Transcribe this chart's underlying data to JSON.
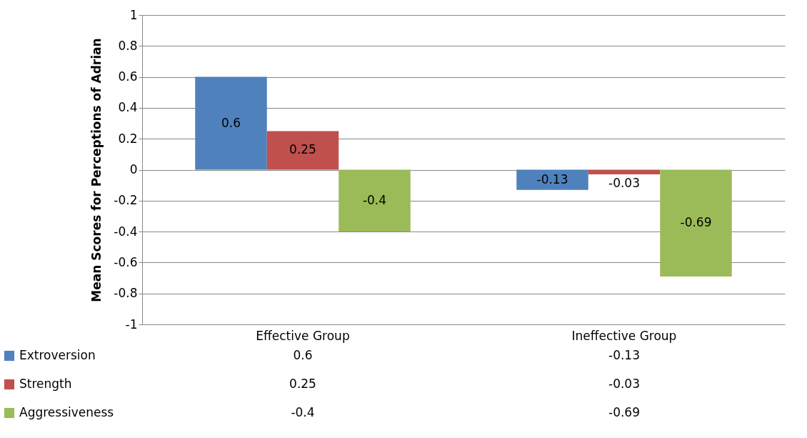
{
  "chart_data": {
    "type": "bar",
    "ylabel": "Mean Scores for Perceptions of Adrian",
    "categories": [
      "Effective Group",
      "Ineffective Group"
    ],
    "series": [
      {
        "name": "Extroversion",
        "color": "#4f81bd",
        "values": [
          0.6,
          -0.13
        ]
      },
      {
        "name": "Strength",
        "color": "#c0504d",
        "values": [
          0.25,
          -0.03
        ]
      },
      {
        "name": "Aggressiveness",
        "color": "#9bbb59",
        "values": [
          -0.4,
          -0.69
        ]
      }
    ],
    "annotations": [
      "0.6",
      "-0.13",
      "0.25",
      "-0.03",
      "-0.4",
      "-0.69"
    ],
    "ylim": [
      -1,
      1
    ],
    "yticks": [
      -1,
      -0.8,
      -0.6,
      -0.4,
      -0.2,
      0,
      0.2,
      0.4,
      0.6,
      0.8,
      1
    ],
    "grid": "y",
    "data_labels": true,
    "legend": "bottom"
  }
}
